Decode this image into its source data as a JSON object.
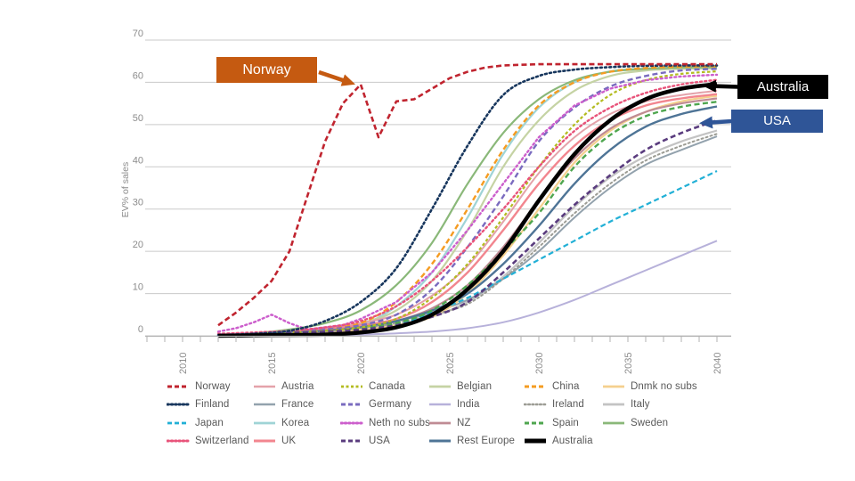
{
  "chart": {
    "ylabel": "EV% of sales",
    "y_ticks": [
      0,
      10,
      20,
      30,
      40,
      50,
      60,
      70
    ],
    "x_tick_labels": [
      2010,
      2015,
      2020,
      2025,
      2030,
      2035,
      2040
    ],
    "grid_color": "#cacaca",
    "axis_color": "#b3b3b3",
    "tick_label_color": "#8c8c8c",
    "legend_text_color": "#595959"
  },
  "annotations": {
    "norway": {
      "label": "Norway",
      "box_color": "#c55a11",
      "text_color": "#ffffff",
      "target": [
        2019.7,
        59.5
      ]
    },
    "australia": {
      "label": "Australia",
      "box_color": "#000000",
      "text_color": "#ffffff",
      "target": [
        2039.2,
        59.2
      ]
    },
    "usa": {
      "label": "USA",
      "box_color": "#2f5597",
      "text_color": "#ffffff",
      "target": [
        2039.0,
        50.3
      ]
    }
  },
  "chart_data": {
    "type": "line",
    "title": "",
    "xlabel": "",
    "ylabel": "EV% of sales",
    "xlim": [
      2010,
      2041
    ],
    "ylim": [
      0,
      70
    ],
    "grid": "horizontal",
    "legend_position": "bottom",
    "years": [
      2012,
      2014,
      2016,
      2018,
      2020,
      2022,
      2024,
      2026,
      2028,
      2030,
      2032,
      2034,
      2036,
      2038,
      2040
    ],
    "legend_order": [
      "Norway",
      "Austria",
      "Canada",
      "Belgian",
      "China",
      "Dnmk no subs",
      "Finland",
      "France",
      "Germany",
      "India",
      "Ireland",
      "Italy",
      "Japan",
      "Korea",
      "Neth no subs",
      "NZ",
      "Spain",
      "Sweden",
      "Switzerland",
      "UK",
      "USA",
      "Rest Europe",
      "Australia"
    ],
    "series": [
      {
        "name": "India",
        "color": "#b7b1da",
        "style": "solid",
        "width": 2,
        "y": [
          0,
          0.1,
          0.1,
          0.2,
          0.3,
          0.6,
          1,
          1.8,
          3.2,
          5.5,
          8.5,
          12,
          15.5,
          19,
          22.5
        ]
      },
      {
        "name": "Italy",
        "color": "#c3c3c3",
        "style": "solid",
        "width": 2.2,
        "y": [
          0.1,
          0.2,
          0.4,
          0.8,
          1.5,
          2.5,
          4.5,
          8,
          14,
          22,
          30.5,
          37.5,
          42.5,
          46,
          48.6
        ]
      },
      {
        "name": "France",
        "color": "#93a2ad",
        "style": "solid",
        "width": 2,
        "y": [
          0.2,
          0.5,
          0.9,
          1.4,
          2.2,
          3.5,
          5.5,
          8.5,
          13.5,
          20,
          28,
          35,
          40.5,
          44,
          47.2
        ]
      },
      {
        "name": "Korea",
        "color": "#9fd4d6",
        "style": "solid",
        "width": 2.2,
        "y": [
          0.1,
          0.3,
          0.8,
          1.5,
          2.5,
          7,
          15,
          28,
          43,
          54,
          60,
          62.6,
          63.3,
          63.6,
          63.7
        ]
      },
      {
        "name": "Belgian",
        "color": "#c5d3a4",
        "style": "solid",
        "width": 2.2,
        "y": [
          0.2,
          0.4,
          1,
          1.8,
          3,
          6,
          13,
          25,
          40,
          51,
          58,
          61.5,
          62.8,
          63.2,
          63.3
        ]
      },
      {
        "name": "Dnmk no subs",
        "color": "#f5d08e",
        "style": "solid",
        "width": 2.2,
        "y": [
          0.1,
          0.2,
          0.4,
          0.8,
          1.5,
          2.5,
          4.5,
          10,
          19,
          30,
          41,
          48.5,
          53,
          55.5,
          56.8
        ]
      },
      {
        "name": "Austria",
        "color": "#e4a2aa",
        "style": "solid",
        "width": 2,
        "y": [
          0.3,
          0.6,
          1,
          1.8,
          3,
          5,
          9.5,
          16.5,
          27,
          38.5,
          47,
          52.5,
          55.5,
          57,
          58
        ]
      },
      {
        "name": "UK",
        "color": "#f2868f",
        "style": "solid",
        "width": 2.4,
        "y": [
          0.2,
          0.5,
          0.9,
          1.5,
          2.5,
          4,
          8,
          15,
          25,
          36,
          45,
          51,
          54.5,
          56.2,
          57.2
        ]
      },
      {
        "name": "NZ",
        "color": "#bf8b94",
        "style": "solid",
        "width": 2.2,
        "y": [
          0.1,
          0.3,
          0.6,
          1,
          2,
          3.5,
          6.5,
          12,
          21,
          32,
          42,
          49,
          53,
          55,
          56.2
        ]
      },
      {
        "name": "Sweden",
        "color": "#8ab879",
        "style": "solid",
        "width": 2.2,
        "y": [
          0.3,
          0.6,
          1.5,
          3,
          6,
          12,
          22,
          36,
          48,
          56,
          60.5,
          62.5,
          63.2,
          63.5,
          63.6
        ]
      },
      {
        "name": "Rest Europe",
        "color": "#4e7496",
        "style": "solid",
        "width": 2.4,
        "y": [
          0.2,
          0.4,
          0.8,
          1.2,
          2,
          3.5,
          6,
          10,
          17,
          26,
          36,
          44,
          49.5,
          52.5,
          54.3
        ]
      },
      {
        "name": "China",
        "color": "#f59c22",
        "style": "dash",
        "width": 2.4,
        "y": [
          0.2,
          0.4,
          1,
          1.8,
          3,
          8,
          17,
          30,
          44,
          54.5,
          60,
          62.5,
          63.4,
          63.7,
          63.8
        ]
      },
      {
        "name": "Ireland",
        "color": "#9c9c94",
        "style": "dot",
        "width": 2,
        "y": [
          0.1,
          0.3,
          0.6,
          1,
          1.8,
          3,
          5,
          7.5,
          13.5,
          21,
          29,
          36,
          41.5,
          45,
          47.8
        ]
      },
      {
        "name": "Japan",
        "color": "#22b0d6",
        "style": "dash",
        "width": 2.2,
        "y": [
          0.1,
          0.2,
          0.3,
          0.5,
          1,
          2.5,
          5.5,
          9,
          13.5,
          18,
          22.5,
          27,
          31,
          35,
          39
        ]
      },
      {
        "name": "Spain",
        "color": "#4fa64f",
        "style": "dash",
        "width": 2.4,
        "y": [
          0.1,
          0.3,
          0.6,
          1,
          1.8,
          3,
          6,
          12,
          20,
          29,
          40,
          47.5,
          52,
          54.2,
          55.4
        ]
      },
      {
        "name": "Germany",
        "color": "#7a6bbf",
        "style": "dash",
        "width": 2.4,
        "y": [
          0.3,
          0.6,
          1,
          1.5,
          2.5,
          5,
          11,
          21,
          33,
          46,
          54,
          59,
          61.5,
          62.8,
          63.2
        ]
      },
      {
        "name": "Canada",
        "color": "#b3bb1f",
        "style": "shortdash",
        "width": 2.2,
        "y": [
          0.2,
          0.4,
          0.8,
          1.2,
          2,
          4,
          9,
          17,
          28,
          40,
          50,
          57,
          60.5,
          62,
          62.6
        ]
      },
      {
        "name": "Neth no subs",
        "color": "#cc5ecc",
        "style": "dot",
        "width": 2.4,
        "smooth": false,
        "x": [
          2012,
          2013,
          2014,
          2015,
          2016,
          2017,
          2018,
          2019,
          2020,
          2022,
          2024,
          2026,
          2028,
          2030,
          2032,
          2034,
          2036,
          2038,
          2040
        ],
        "y": [
          1,
          1.8,
          3.2,
          5,
          3,
          1.5,
          2,
          2.5,
          4,
          8,
          15,
          25,
          36,
          47,
          54.5,
          58.5,
          60.5,
          61.4,
          61.8
        ]
      },
      {
        "name": "Switzerland",
        "color": "#e8537a",
        "style": "dot",
        "width": 2.4,
        "y": [
          0.5,
          0.8,
          1.2,
          2,
          3.5,
          7,
          13,
          21,
          30,
          40,
          48.5,
          54,
          57.5,
          59.5,
          60.6
        ]
      },
      {
        "name": "USA",
        "color": "#5a3c7e",
        "style": "dash",
        "width": 2.6,
        "y": [
          0.2,
          0.4,
          0.7,
          1,
          1.5,
          2.5,
          4.5,
          8,
          15,
          23,
          31,
          38,
          44,
          48,
          51
        ]
      },
      {
        "name": "Finland",
        "color": "#17365d",
        "style": "dot",
        "width": 2.6,
        "y": [
          0.2,
          0.5,
          1.2,
          3.5,
          8,
          16,
          30,
          45,
          57,
          61.5,
          63,
          63.6,
          63.9,
          64,
          64
        ]
      },
      {
        "name": "Norway",
        "color": "#c0242f",
        "style": "dash",
        "width": 2.6,
        "smooth": false,
        "x": [
          2012,
          2013,
          2014,
          2015,
          2016,
          2017,
          2018,
          2019,
          2020,
          2021,
          2022,
          2023,
          2024,
          2025,
          2026,
          2027,
          2028,
          2030,
          2032,
          2035,
          2040
        ],
        "y": [
          2.5,
          5.5,
          9,
          13,
          20,
          33,
          46,
          55,
          59.5,
          47,
          55.5,
          56,
          58.5,
          61,
          62.5,
          63.5,
          64,
          64.3,
          64.3,
          64.3,
          64.3
        ]
      },
      {
        "name": "Australia",
        "color": "#000000",
        "style": "solid",
        "width": 4.5,
        "y": [
          0,
          0.1,
          0.2,
          0.3,
          0.8,
          2,
          5,
          11,
          20,
          32,
          43,
          51,
          56,
          58.5,
          59.6
        ]
      }
    ]
  }
}
